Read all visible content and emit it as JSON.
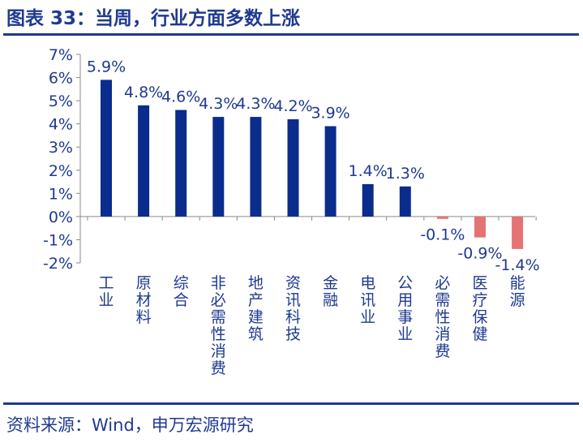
{
  "header": {
    "title": "图表 33：当周，行业方面多数上涨"
  },
  "footer": {
    "source": "资料来源：Wind，申万宏源研究"
  },
  "colors": {
    "positive": "#0a2c8c",
    "negative": "#e57373",
    "text": "#1f3a8f"
  },
  "chart_data": {
    "type": "bar",
    "title": "",
    "xlabel": "",
    "ylabel": "",
    "categories": [
      "工业",
      "原材料",
      "综合",
      "非必需性消费",
      "地产建筑",
      "资讯科技",
      "金融",
      "电讯业",
      "公用事业",
      "必需性消费",
      "医疗保健",
      "能源"
    ],
    "values": [
      5.9,
      4.8,
      4.6,
      4.3,
      4.3,
      4.2,
      3.9,
      1.4,
      1.3,
      -0.1,
      -0.9,
      -1.4
    ],
    "data_labels": [
      "5.9%",
      "4.8%",
      "4.6%",
      "4.3%",
      "4.3%",
      "4.2%",
      "3.9%",
      "1.4%",
      "1.3%",
      "-0.1%",
      "-0.9%",
      "-1.4%"
    ],
    "yticks": [
      "7%",
      "6%",
      "5%",
      "4%",
      "3%",
      "2%",
      "1%",
      "0%",
      "-1%",
      "-2%"
    ],
    "ylim": [
      -2,
      7
    ],
    "grid": false,
    "legend": "none"
  }
}
